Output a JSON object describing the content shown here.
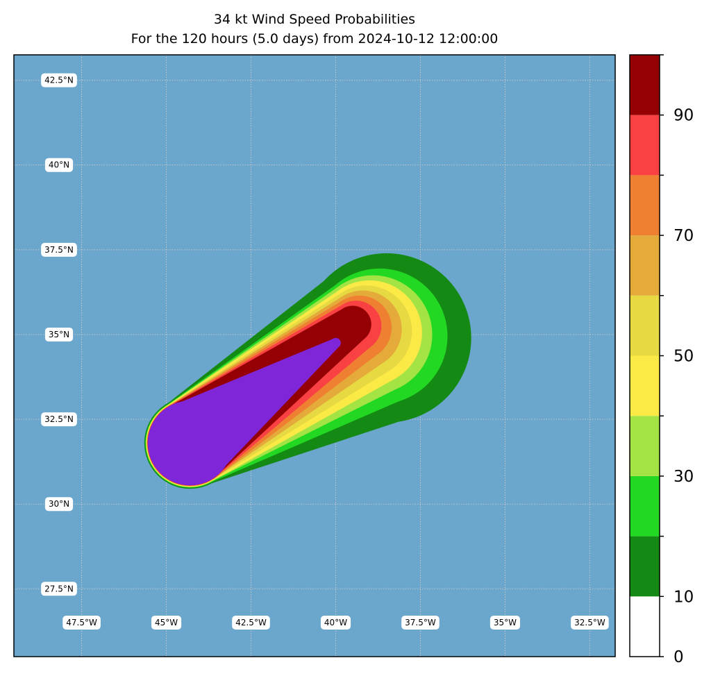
{
  "chart_data": {
    "type": "heatmap",
    "title": "34 kt Wind Speed Probabilities",
    "subtitle": "For the 120 hours (5.0 days) from 2024-10-12 12:00:00",
    "map": {
      "lon_range": [
        -49.5,
        -31.75
      ],
      "lat_range": [
        25.5,
        43.25
      ],
      "lat_ticks": [
        42.5,
        40,
        37.5,
        35,
        32.5,
        30,
        27.5
      ],
      "lat_labels": [
        "42.5°N",
        "40°N",
        "37.5°N",
        "35°N",
        "32.5°N",
        "30°N",
        "27.5°N"
      ],
      "lon_ticks": [
        -47.5,
        -45,
        -42.5,
        -40,
        -37.5,
        -35,
        -32.5
      ],
      "lon_labels": [
        "47.5°W",
        "45°W",
        "42.5°W",
        "40°W",
        "37.5°W",
        "35°W",
        "32.5°W"
      ],
      "gridlines": true,
      "background_color": "#6ba6cc"
    },
    "colorbar": {
      "levels": [
        0,
        10,
        20,
        30,
        40,
        50,
        60,
        70,
        80,
        90,
        100
      ],
      "colors": [
        "#ffffff",
        "#148914",
        "#22d822",
        "#a3e444",
        "#fbea45",
        "#e6d942",
        "#e4aa3a",
        "#ef8032",
        "#f94042",
        "#940004",
        "#7f26d8"
      ],
      "tick_values": [
        0,
        10,
        30,
        50,
        70,
        90
      ],
      "tick_labels": [
        "0",
        "10",
        "30",
        "50",
        "70",
        "90"
      ]
    },
    "probability_field": {
      "track_start": {
        "lon": -44.2,
        "lat": 32.1
      },
      "track_end": {
        "lon": -40.0,
        "lat": 34.8
      },
      "contours": [
        {
          "min_prob": 0,
          "color": "#148914",
          "start": {
            "lon": -44.3,
            "lat": 31.8
          },
          "end": {
            "lon": -38.5,
            "lat": 34.9
          },
          "start_radius_deg": 1.35,
          "end_radius_deg": 2.5
        },
        {
          "min_prob": 10,
          "color": "#22d822",
          "start": {
            "lon": -44.3,
            "lat": 31.8
          },
          "end": {
            "lon": -38.7,
            "lat": 34.95
          },
          "start_radius_deg": 1.32,
          "end_radius_deg": 2.0
        },
        {
          "min_prob": 20,
          "color": "#a3e444",
          "start": {
            "lon": -44.3,
            "lat": 31.8
          },
          "end": {
            "lon": -38.9,
            "lat": 35.0
          },
          "start_radius_deg": 1.3,
          "end_radius_deg": 1.75
        },
        {
          "min_prob": 30,
          "color": "#fbea45",
          "start": {
            "lon": -44.3,
            "lat": 31.8
          },
          "end": {
            "lon": -39.0,
            "lat": 35.05
          },
          "start_radius_deg": 1.3,
          "end_radius_deg": 1.55
        },
        {
          "min_prob": 40,
          "color": "#e6d942",
          "start": {
            "lon": -44.3,
            "lat": 31.8
          },
          "end": {
            "lon": -39.1,
            "lat": 35.1
          },
          "start_radius_deg": 1.28,
          "end_radius_deg": 1.35
        },
        {
          "min_prob": 50,
          "color": "#e4aa3a",
          "start": {
            "lon": -44.3,
            "lat": 31.8
          },
          "end": {
            "lon": -39.2,
            "lat": 35.15
          },
          "start_radius_deg": 1.27,
          "end_radius_deg": 1.15
        },
        {
          "min_prob": 60,
          "color": "#ef8032",
          "start": {
            "lon": -44.3,
            "lat": 31.8
          },
          "end": {
            "lon": -39.3,
            "lat": 35.2
          },
          "start_radius_deg": 1.27,
          "end_radius_deg": 0.95
        },
        {
          "min_prob": 70,
          "color": "#f94042",
          "start": {
            "lon": -44.3,
            "lat": 31.8
          },
          "end": {
            "lon": -39.4,
            "lat": 35.25
          },
          "start_radius_deg": 1.26,
          "end_radius_deg": 0.75
        },
        {
          "min_prob": 80,
          "color": "#940004",
          "start": {
            "lon": -44.3,
            "lat": 31.8
          },
          "end": {
            "lon": -39.5,
            "lat": 35.3
          },
          "start_radius_deg": 1.25,
          "end_radius_deg": 0.55
        },
        {
          "min_prob": 90,
          "color": "#7f26d8",
          "start": {
            "lon": -44.3,
            "lat": 31.8
          },
          "end": {
            "lon": -40.0,
            "lat": 34.75
          },
          "start_radius_deg": 1.25,
          "end_radius_deg": 0.15
        }
      ]
    }
  }
}
